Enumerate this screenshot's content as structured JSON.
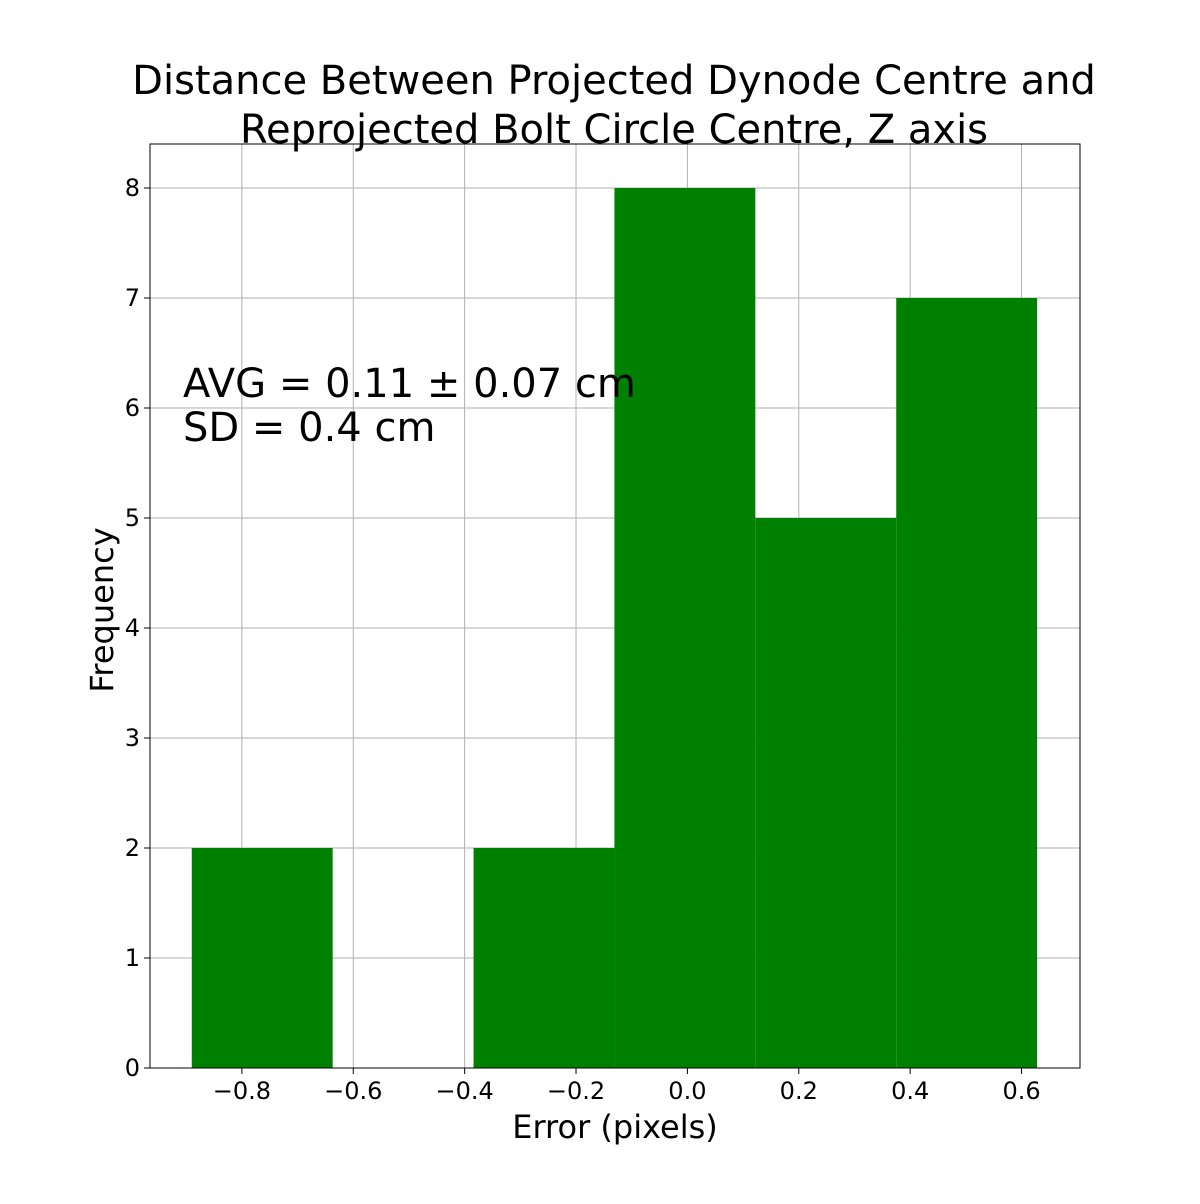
{
  "chart_data": {
    "type": "bar",
    "title_lines": [
      "Distance Between Projected Dynode Centre and",
      "Reprojected Bolt Circle Centre, Z axis"
    ],
    "xlabel": "Error (pixels)",
    "ylabel": "Frequency",
    "xlim": [
      -0.965,
      0.705
    ],
    "ylim": [
      0,
      8.4
    ],
    "xticks": [
      -0.8,
      -0.6,
      -0.4,
      -0.2,
      0.0,
      0.2,
      0.4,
      0.6
    ],
    "xtick_labels": [
      "−0.8",
      "−0.6",
      "−0.4",
      "−0.2",
      "0.0",
      "0.2",
      "0.4",
      "0.6"
    ],
    "yticks": [
      0,
      1,
      2,
      3,
      4,
      5,
      6,
      7,
      8
    ],
    "ytick_labels": [
      "0",
      "1",
      "2",
      "3",
      "4",
      "5",
      "6",
      "7",
      "8"
    ],
    "grid": true,
    "bar_color": "#008000",
    "bins": [
      {
        "x0": -0.89,
        "x1": -0.637,
        "count": 2
      },
      {
        "x0": -0.637,
        "x1": -0.384,
        "count": 0
      },
      {
        "x0": -0.384,
        "x1": -0.131,
        "count": 2
      },
      {
        "x0": -0.131,
        "x1": 0.122,
        "count": 8
      },
      {
        "x0": 0.122,
        "x1": 0.375,
        "count": 5
      },
      {
        "x0": 0.375,
        "x1": 0.628,
        "count": 7
      }
    ],
    "annotations": [
      "AVG = 0.11 ± 0.07 cm",
      "SD = 0.4 cm"
    ]
  }
}
